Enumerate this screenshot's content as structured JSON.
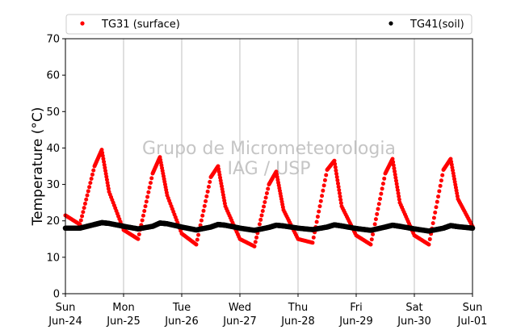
{
  "chart_data": {
    "type": "scatter",
    "title": "",
    "xlabel": "",
    "ylabel": "Temperature (°C)",
    "ylim": [
      0,
      70
    ],
    "yticks": [
      0,
      10,
      20,
      30,
      40,
      50,
      60,
      70
    ],
    "xlim": [
      "2018-06-24",
      "2018-07-01"
    ],
    "x_ticks": [
      {
        "day": "Sun",
        "date": "Jun-24"
      },
      {
        "day": "Mon",
        "date": "Jun-25"
      },
      {
        "day": "Tue",
        "date": "Jun-26"
      },
      {
        "day": "Wed",
        "date": "Jun-27"
      },
      {
        "day": "Thu",
        "date": "Jun-28"
      },
      {
        "day": "Fri",
        "date": "Jun-29"
      },
      {
        "day": "Sat",
        "date": "Jun-30"
      },
      {
        "day": "Sun",
        "date": "Jul-01"
      }
    ],
    "grid": "vertical",
    "legend_position": "top",
    "watermark": [
      "Grupo de Micrometeorologia",
      "IAG / USP"
    ],
    "series": [
      {
        "name": "TG31 (surface)",
        "color": "#ff0000",
        "x": [
          "Jun-24 00h",
          "Jun-24 06h",
          "Jun-24 12h",
          "Jun-24 15h",
          "Jun-24 18h",
          "Jun-25 00h",
          "Jun-25 06h",
          "Jun-25 12h",
          "Jun-25 15h",
          "Jun-25 18h",
          "Jun-26 00h",
          "Jun-26 06h",
          "Jun-26 12h",
          "Jun-26 15h",
          "Jun-26 18h",
          "Jun-27 00h",
          "Jun-27 06h",
          "Jun-27 12h",
          "Jun-27 15h",
          "Jun-27 18h",
          "Jun-28 00h",
          "Jun-28 06h",
          "Jun-28 12h",
          "Jun-28 15h",
          "Jun-28 18h",
          "Jun-29 00h",
          "Jun-29 06h",
          "Jun-29 12h",
          "Jun-29 15h",
          "Jun-29 18h",
          "Jun-30 00h",
          "Jun-30 06h",
          "Jun-30 12h",
          "Jun-30 15h",
          "Jun-30 18h",
          "Jul-01 00h"
        ],
        "values": [
          21.5,
          19.0,
          35.0,
          39.5,
          28.0,
          17.5,
          15.0,
          33.0,
          37.5,
          27.0,
          16.5,
          13.5,
          32.0,
          35.0,
          24.0,
          15.0,
          13.0,
          30.0,
          33.5,
          23.0,
          15.0,
          14.0,
          34.0,
          36.5,
          24.0,
          16.0,
          13.5,
          33.0,
          37.0,
          25.0,
          16.0,
          13.5,
          34.0,
          37.0,
          26.0,
          18.5
        ]
      },
      {
        "name": "TG41(soil)",
        "color": "#000000",
        "x": [
          "Jun-24 00h",
          "Jun-24 06h",
          "Jun-24 12h",
          "Jun-24 15h",
          "Jun-24 18h",
          "Jun-25 00h",
          "Jun-25 06h",
          "Jun-25 12h",
          "Jun-25 15h",
          "Jun-25 18h",
          "Jun-26 00h",
          "Jun-26 06h",
          "Jun-26 12h",
          "Jun-26 15h",
          "Jun-26 18h",
          "Jun-27 00h",
          "Jun-27 06h",
          "Jun-27 12h",
          "Jun-27 15h",
          "Jun-27 18h",
          "Jun-28 00h",
          "Jun-28 06h",
          "Jun-28 12h",
          "Jun-28 15h",
          "Jun-28 18h",
          "Jun-29 00h",
          "Jun-29 06h",
          "Jun-29 12h",
          "Jun-29 15h",
          "Jun-29 18h",
          "Jun-30 00h",
          "Jun-30 06h",
          "Jun-30 12h",
          "Jun-30 15h",
          "Jun-30 18h",
          "Jul-01 00h"
        ],
        "values": [
          18.0,
          18.0,
          19.0,
          19.5,
          19.3,
          18.5,
          17.8,
          18.5,
          19.4,
          19.2,
          18.3,
          17.5,
          18.3,
          19.0,
          18.8,
          18.0,
          17.4,
          18.2,
          18.8,
          18.6,
          18.0,
          17.6,
          18.3,
          18.9,
          18.6,
          17.9,
          17.4,
          18.3,
          18.8,
          18.5,
          17.8,
          17.2,
          18.0,
          18.7,
          18.4,
          18.0
        ]
      }
    ]
  }
}
